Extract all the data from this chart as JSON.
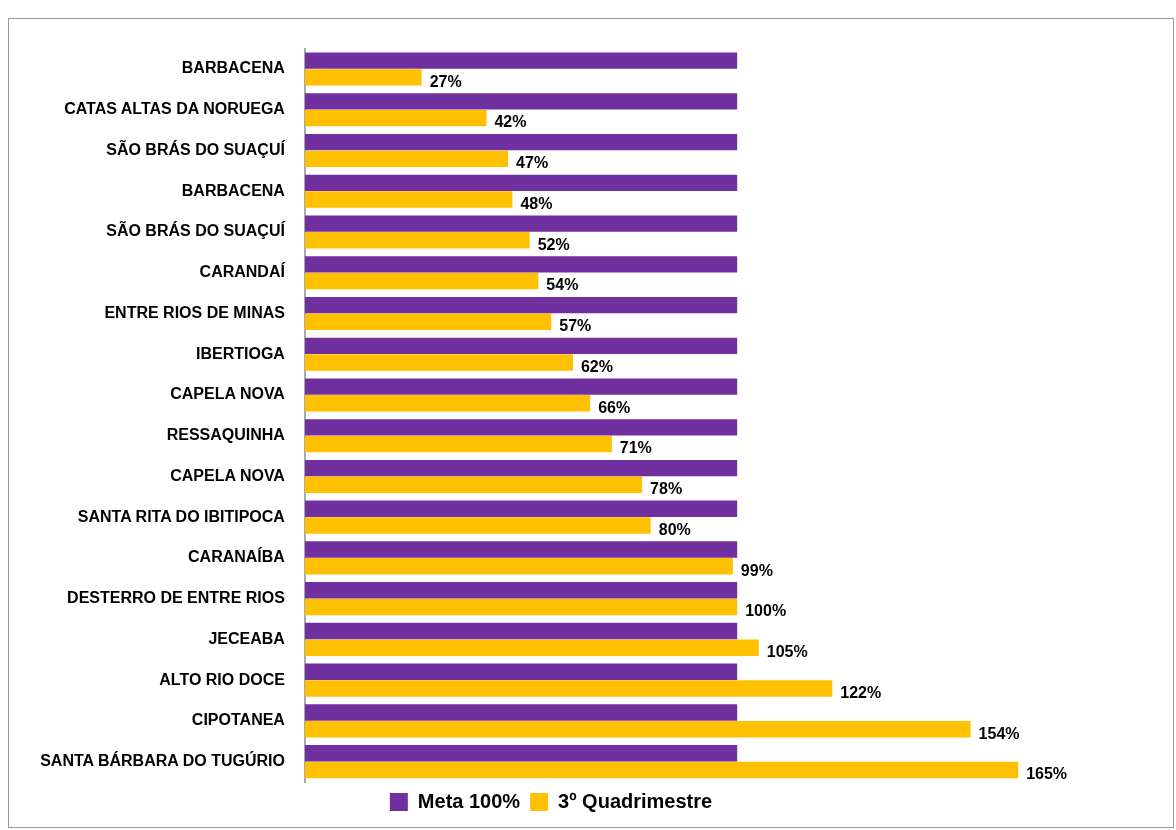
{
  "chart_data": {
    "type": "bar",
    "orientation": "horizontal",
    "categories": [
      "BARBACENA",
      "CATAS ALTAS DA NORUEGA",
      "SÃO BRÁS DO SUAÇUÍ",
      "BARBACENA",
      "SÃO BRÁS DO SUAÇUÍ",
      "CARANDAÍ",
      "ENTRE RIOS DE MINAS",
      "IBERTIOGA",
      "CAPELA NOVA",
      "RESSAQUINHA",
      "CAPELA NOVA",
      "SANTA RITA DO IBITIPOCA",
      "CARANAÍBA",
      "DESTERRO DE ENTRE RIOS",
      "JECEABA",
      "ALTO RIO DOCE",
      "CIPOTANEA",
      "SANTA BÁRBARA DO TUGÚRIO"
    ],
    "series": [
      {
        "name": "Meta 100%",
        "color": "#7030a0",
        "values": [
          100,
          100,
          100,
          100,
          100,
          100,
          100,
          100,
          100,
          100,
          100,
          100,
          100,
          100,
          100,
          100,
          100,
          100
        ]
      },
      {
        "name": "3º Quadrimestre",
        "color": "#ffc000",
        "values": [
          27,
          42,
          47,
          48,
          52,
          54,
          57,
          62,
          66,
          71,
          78,
          80,
          99,
          100,
          105,
          122,
          154,
          165
        ],
        "value_labels": [
          "27%",
          "42%",
          "47%",
          "48%",
          "52%",
          "54%",
          "57%",
          "62%",
          "66%",
          "71%",
          "78%",
          "80%",
          "99%",
          "100%",
          "105%",
          "122%",
          "154%",
          "165%"
        ]
      }
    ],
    "legend": "bottom",
    "grid": false,
    "tick_labels": "y"
  }
}
